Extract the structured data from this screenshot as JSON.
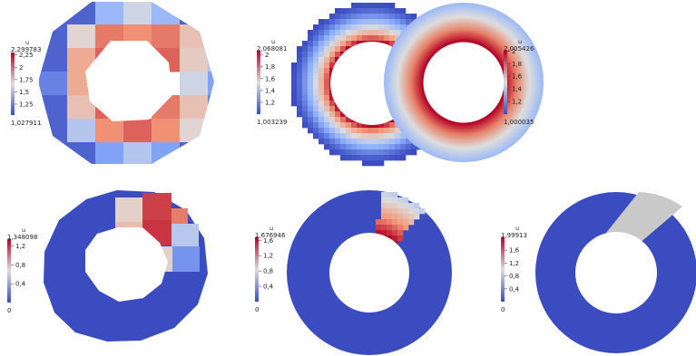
{
  "panels": [
    {
      "id": "top-coarse",
      "colorbar": {
        "title": "u",
        "max_label": "2,299783",
        "min_label": "1,027911",
        "ticks": [
          {
            "v": 2.25,
            "label": "2,25"
          },
          {
            "v": 2,
            "label": "2"
          },
          {
            "v": 1.75,
            "label": "1,75"
          },
          {
            "v": 1.5,
            "label": "1,5"
          },
          {
            "v": 1.25,
            "label": "1,25"
          }
        ],
        "range": [
          1.027911,
          2.299783
        ]
      }
    },
    {
      "id": "top-medium",
      "colorbar": {
        "title": "u",
        "max_label": "2,068081",
        "min_label": "1,003239",
        "ticks": [
          {
            "v": 2,
            "label": "2"
          },
          {
            "v": 1.8,
            "label": "1,8"
          },
          {
            "v": 1.6,
            "label": "1,6"
          },
          {
            "v": 1.4,
            "label": "1,4"
          },
          {
            "v": 1.2,
            "label": "1,2"
          }
        ],
        "range": [
          1.003239,
          2.068081
        ]
      }
    },
    {
      "id": "top-fine",
      "colorbar": {
        "title": "u",
        "max_label": "2,005426",
        "min_label": "1,000035",
        "ticks": [
          {
            "v": 2,
            "label": "2"
          },
          {
            "v": 1.8,
            "label": "1,8"
          },
          {
            "v": 1.6,
            "label": "1,6"
          },
          {
            "v": 1.4,
            "label": "1,4"
          },
          {
            "v": 1.2,
            "label": "1,2"
          }
        ],
        "range": [
          1.000035,
          2.005426
        ]
      }
    },
    {
      "id": "bottom-coarse",
      "colorbar": {
        "title": "u",
        "max_label": "1,348098",
        "min_label": "0",
        "ticks": [
          {
            "v": 1.2,
            "label": "1,2"
          },
          {
            "v": 0.8,
            "label": "0,8"
          },
          {
            "v": 0.4,
            "label": "0,4"
          }
        ],
        "range": [
          0,
          1.348098
        ]
      }
    },
    {
      "id": "bottom-medium",
      "colorbar": {
        "title": "u",
        "max_label": "1,676946",
        "min_label": "0",
        "ticks": [
          {
            "v": 1.6,
            "label": "1,6"
          },
          {
            "v": 1.2,
            "label": "1,2"
          },
          {
            "v": 0.8,
            "label": "0,8"
          },
          {
            "v": 0.4,
            "label": "0,4"
          }
        ],
        "range": [
          0,
          1.676946
        ]
      }
    },
    {
      "id": "bottom-fine",
      "colorbar": {
        "title": "u",
        "max_label": "1,99913",
        "min_label": "0",
        "ticks": [
          {
            "v": 1.6,
            "label": "1,6"
          },
          {
            "v": 1.2,
            "label": "1,2"
          },
          {
            "v": 0.8,
            "label": "0,8"
          },
          {
            "v": 0.4,
            "label": "0,4"
          }
        ],
        "range": [
          0,
          1.99913
        ]
      }
    }
  ],
  "colors": {
    "low": "#3b4cc0",
    "mid": "#dddddd",
    "high": "#b40426",
    "background": "#ffffff"
  }
}
